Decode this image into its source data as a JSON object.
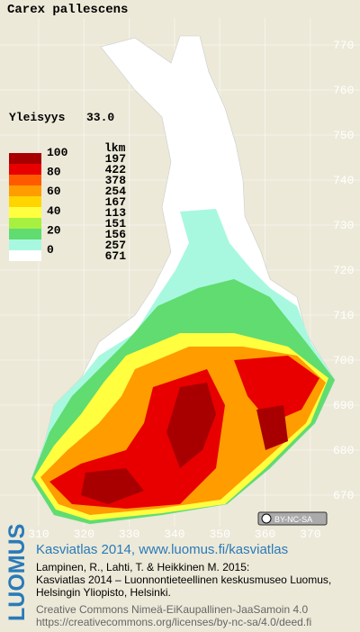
{
  "map": {
    "title": "Carex pallescens",
    "frequency_label": "Yleisyys",
    "frequency_value": "33.0",
    "legend": {
      "count_header": "lkm",
      "scale_labels": [
        "100",
        "80",
        "60",
        "40",
        "20",
        "0"
      ],
      "classes": [
        {
          "color": "#a80000",
          "count": 197
        },
        {
          "color": "#e80000",
          "count": 422
        },
        {
          "color": "#ff5a00",
          "count": 378
        },
        {
          "color": "#ff9c00",
          "count": 254
        },
        {
          "color": "#ffd400",
          "count": 167
        },
        {
          "color": "#ffff40",
          "count": 113
        },
        {
          "color": "#a8f040",
          "count": 151
        },
        {
          "color": "#60dc70",
          "count": 156
        },
        {
          "color": "#a8f8e0",
          "count": 257
        },
        {
          "color": "#ffffff",
          "count": 671
        }
      ]
    },
    "xticks": [
      310,
      320,
      330,
      340,
      350,
      360,
      370
    ],
    "yticks": [
      770,
      760,
      750,
      740,
      730,
      720,
      710,
      700,
      690,
      680,
      670
    ],
    "license_badge": "BY-NC-SA",
    "footer": {
      "logo": "LUOMUS",
      "heading": "Kasviatlas 2014, www.luomus.fi/kasviatlas",
      "citation": [
        "Lampinen, R., Lahti, T. & Heikkinen M. 2015:",
        "Kasviatlas 2014 – Luonnontieteellinen keskusmuseo Luomus,",
        "Helsingin Yliopisto, Helsinki."
      ],
      "license": [
        "Creative Commons Nimeä-EiKaupallinen-JaaSamoin 4.0",
        "https://creativecommons.org/licenses/by-nc-sa/4.0/deed.fi"
      ]
    }
  }
}
